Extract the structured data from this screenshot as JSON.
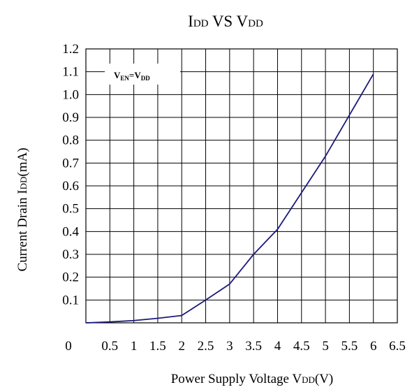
{
  "chart_data": {
    "type": "line",
    "title": {
      "main_1": "I",
      "sub_1": "DD",
      "main_2": " VS V",
      "sub_2": "DD"
    },
    "xlabel": {
      "main": "Power Supply Voltage V",
      "sub": "DD",
      "suffix": "(V)"
    },
    "ylabel": {
      "main": "Current Drain I",
      "sub": "DD",
      "suffix": "(mA)"
    },
    "annotation": {
      "main_1": "V",
      "sub_1": "EN",
      "main_2": "=V",
      "sub_2": "DD"
    },
    "xlim": [
      0,
      6.5
    ],
    "ylim": [
      0,
      1.2
    ],
    "x_ticks": [
      "0",
      "0.5",
      "1",
      "1.5",
      "2",
      "2.5",
      "3",
      "3.5",
      "4",
      "4.5",
      "5",
      "5.5",
      "6",
      "6.5"
    ],
    "y_ticks": [
      "0.1",
      "0.2",
      "0.3",
      "0.4",
      "0.5",
      "0.6",
      "0.7",
      "0.8",
      "0.9",
      "1.0",
      "1.1",
      "1.2"
    ],
    "grid": true,
    "series": [
      {
        "color": "#1a1a7a",
        "x": [
          0,
          0.5,
          1,
          1.5,
          2,
          2.5,
          3,
          3.5,
          4,
          4.5,
          5,
          5.5,
          6
        ],
        "y": [
          0.0,
          0.004,
          0.01,
          0.02,
          0.032,
          0.1,
          0.17,
          0.3,
          0.41,
          0.57,
          0.73,
          0.91,
          1.09
        ]
      }
    ]
  }
}
